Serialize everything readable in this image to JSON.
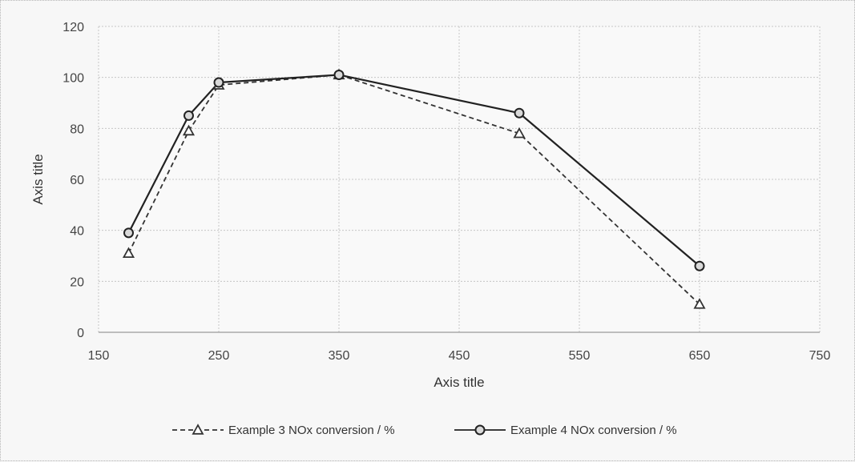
{
  "chart_data": {
    "type": "line",
    "title": "",
    "xlabel": "Axis title",
    "ylabel": "Axis title",
    "xlim": [
      150,
      750
    ],
    "ylim": [
      0,
      120
    ],
    "x_ticks": [
      150,
      250,
      350,
      450,
      550,
      650,
      750
    ],
    "y_ticks": [
      0,
      20,
      40,
      60,
      80,
      100,
      120
    ],
    "grid": true,
    "legend_position": "bottom",
    "series": [
      {
        "name": "Example 3 NOx conversion / %",
        "style": "dashed",
        "marker": "triangle",
        "color": "#333333",
        "x": [
          175,
          225,
          250,
          350,
          500,
          650
        ],
        "y": [
          31,
          79,
          97,
          101,
          78,
          11
        ]
      },
      {
        "name": "Example 4 NOx conversion / %",
        "style": "solid",
        "marker": "circle",
        "color": "#222222",
        "x": [
          175,
          225,
          250,
          350,
          500,
          650
        ],
        "y": [
          39,
          85,
          98,
          101,
          86,
          26
        ]
      }
    ]
  }
}
